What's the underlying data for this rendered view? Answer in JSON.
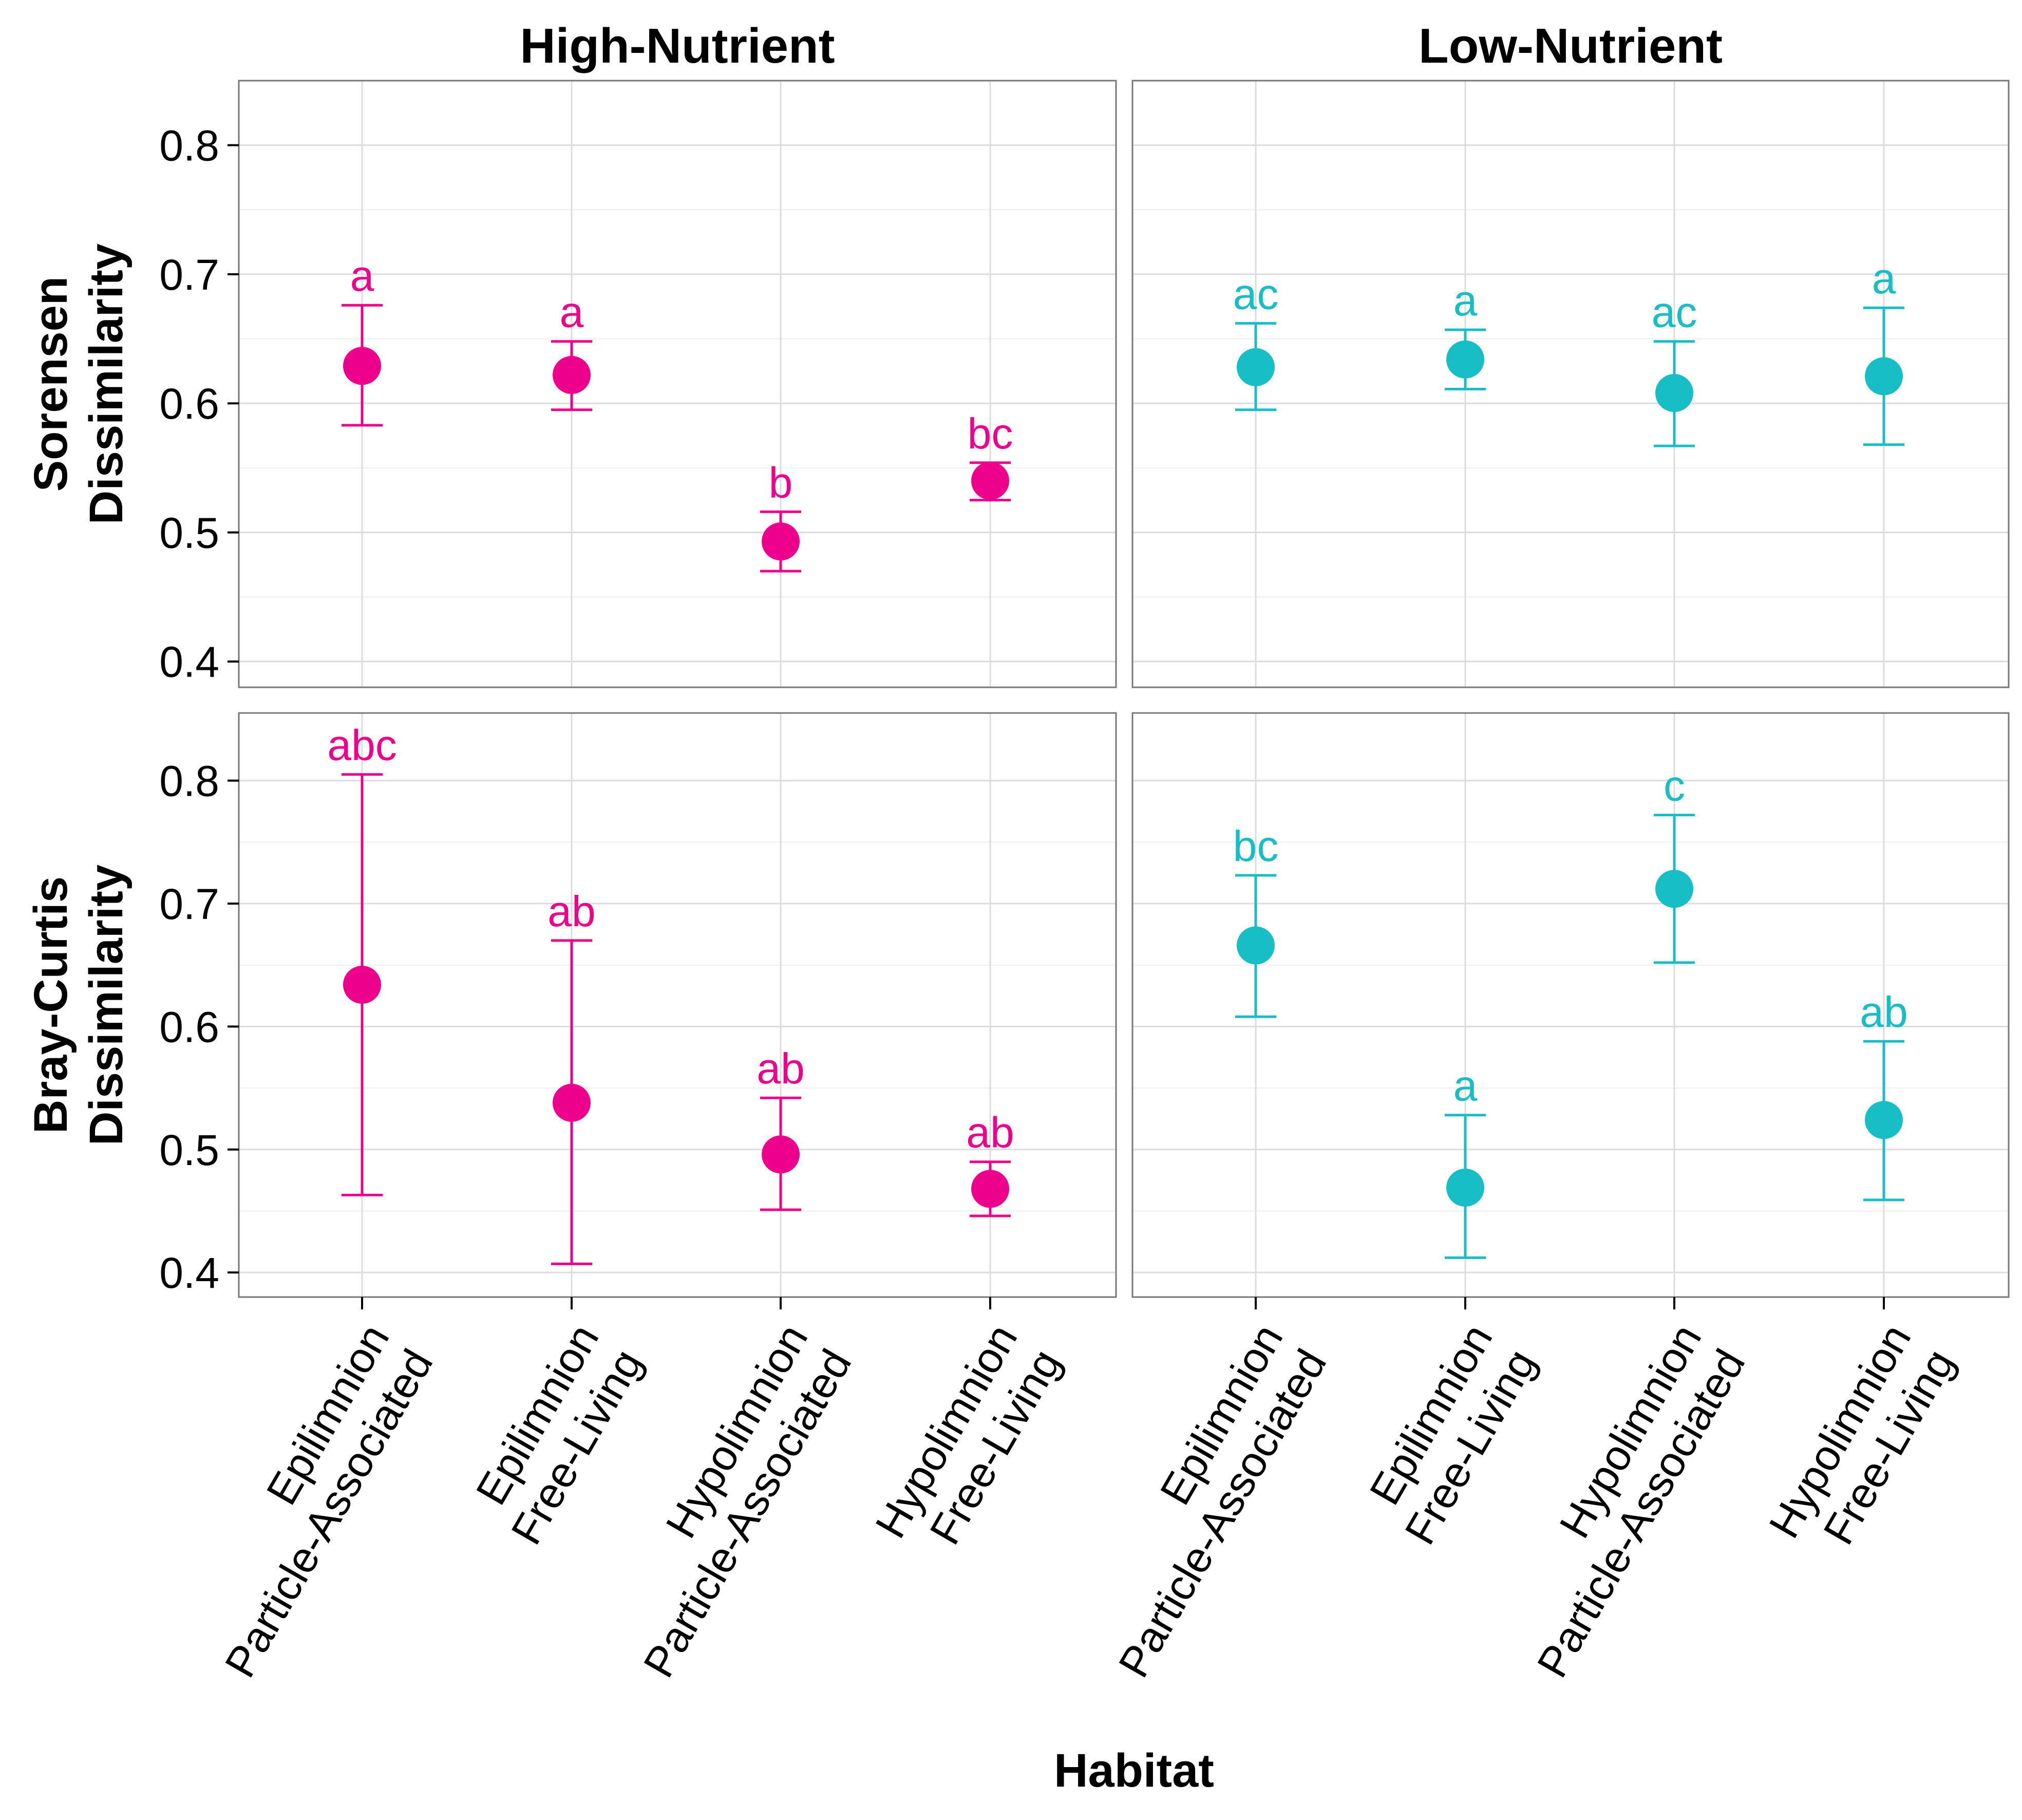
{
  "colors": {
    "high_nutrient": "#EC008C",
    "low_nutrient": "#17BEC5",
    "panel_border": "#777777",
    "grid_major": "#DCDCDC",
    "grid_minor": "#EFEFEF",
    "axis_text": "#000000"
  },
  "chart_data": {
    "type": "scatter",
    "subtype": "point-with-error-bars, faceted 2x2",
    "xlabel": "Habitat",
    "categories": [
      [
        "Epilimnion",
        "Particle-Associated"
      ],
      [
        "Epilimnion",
        "Free-Living"
      ],
      [
        "Hypolimnion",
        "Particle-Associated"
      ],
      [
        "Hypolimnion",
        "Free-Living"
      ]
    ],
    "column_facets": [
      "High-Nutrient",
      "Low-Nutrient"
    ],
    "row_facets": [
      {
        "ylabel": [
          "Sorensen",
          "Dissimilarity"
        ],
        "ylim": [
          0.38,
          0.85
        ],
        "yticks": [
          "0.4",
          "0.5",
          "0.6",
          "0.7",
          "0.8"
        ]
      },
      {
        "ylabel": [
          "Bray-Curtis",
          "Dissimilarity"
        ],
        "ylim": [
          0.38,
          0.855
        ],
        "yticks": [
          "0.4",
          "0.5",
          "0.6",
          "0.7",
          "0.8"
        ]
      }
    ],
    "grid": true,
    "panels": [
      {
        "row": 0,
        "col": 0,
        "facet": "High-Nutrient",
        "metric": "Sorensen Dissimilarity",
        "points": [
          {
            "mean": 0.629,
            "lower": 0.583,
            "upper": 0.676,
            "label": "a"
          },
          {
            "mean": 0.622,
            "lower": 0.595,
            "upper": 0.648,
            "label": "a"
          },
          {
            "mean": 0.493,
            "lower": 0.47,
            "upper": 0.516,
            "label": "b"
          },
          {
            "mean": 0.54,
            "lower": 0.525,
            "upper": 0.554,
            "label": "bc"
          }
        ]
      },
      {
        "row": 0,
        "col": 1,
        "facet": "Low-Nutrient",
        "metric": "Sorensen Dissimilarity",
        "points": [
          {
            "mean": 0.628,
            "lower": 0.595,
            "upper": 0.662,
            "label": "ac"
          },
          {
            "mean": 0.634,
            "lower": 0.611,
            "upper": 0.657,
            "label": "a"
          },
          {
            "mean": 0.608,
            "lower": 0.567,
            "upper": 0.648,
            "label": "ac"
          },
          {
            "mean": 0.621,
            "lower": 0.568,
            "upper": 0.674,
            "label": "a"
          }
        ]
      },
      {
        "row": 1,
        "col": 0,
        "facet": "High-Nutrient",
        "metric": "Bray-Curtis Dissimilarity",
        "points": [
          {
            "mean": 0.634,
            "lower": 0.463,
            "upper": 0.805,
            "label": "abc"
          },
          {
            "mean": 0.538,
            "lower": 0.407,
            "upper": 0.67,
            "label": "ab"
          },
          {
            "mean": 0.496,
            "lower": 0.451,
            "upper": 0.542,
            "label": "ab"
          },
          {
            "mean": 0.468,
            "lower": 0.446,
            "upper": 0.49,
            "label": "ab"
          }
        ]
      },
      {
        "row": 1,
        "col": 1,
        "facet": "Low-Nutrient",
        "metric": "Bray-Curtis Dissimilarity",
        "points": [
          {
            "mean": 0.666,
            "lower": 0.608,
            "upper": 0.723,
            "label": "bc"
          },
          {
            "mean": 0.469,
            "lower": 0.412,
            "upper": 0.528,
            "label": "a"
          },
          {
            "mean": 0.712,
            "lower": 0.652,
            "upper": 0.772,
            "label": "c"
          },
          {
            "mean": 0.524,
            "lower": 0.459,
            "upper": 0.588,
            "label": "ab"
          }
        ]
      }
    ]
  }
}
